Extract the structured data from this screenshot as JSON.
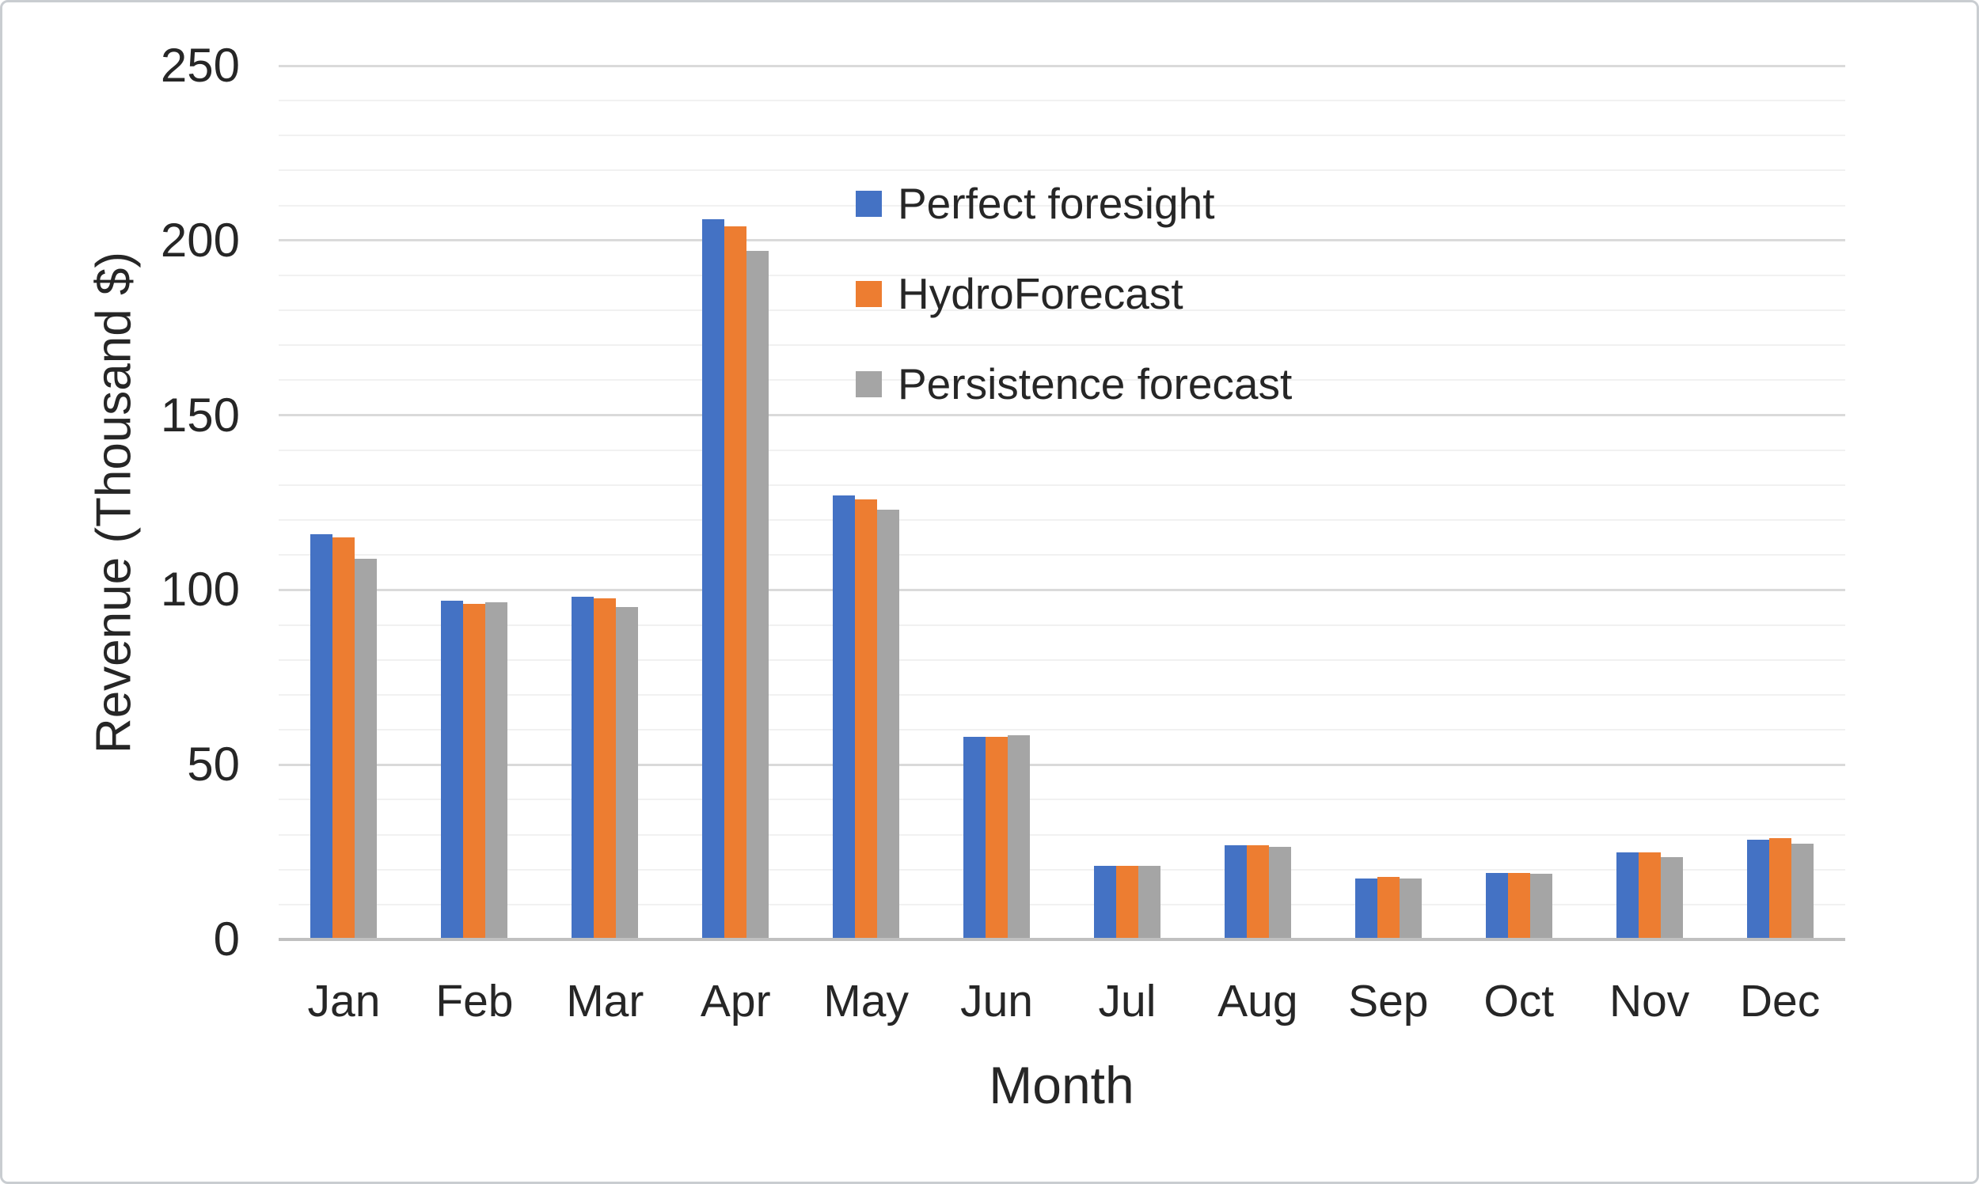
{
  "figure": {
    "background": "#ffffff",
    "border_color": "#c9cdd1"
  },
  "chart_data": {
    "type": "bar",
    "title": "",
    "xlabel": "Month",
    "ylabel": "Revenue (Thousand $)",
    "categories": [
      "Jan",
      "Feb",
      "Mar",
      "Apr",
      "May",
      "Jun",
      "Jul",
      "Aug",
      "Sep",
      "Oct",
      "Nov",
      "Dec"
    ],
    "series": [
      {
        "name": "Perfect foresight",
        "color": "#4472C4",
        "values": [
          116,
          97,
          98,
          206,
          127,
          58,
          21,
          27,
          17.5,
          19,
          25,
          28.5
        ]
      },
      {
        "name": "HydroForecast",
        "color": "#ED7D31",
        "values": [
          115,
          96,
          97.5,
          204,
          126,
          58,
          21,
          27,
          18,
          19,
          25,
          29
        ]
      },
      {
        "name": "Persistence forecast",
        "color": "#A5A5A5",
        "values": [
          109,
          96.5,
          95,
          197,
          123,
          58.5,
          21,
          26.5,
          17.5,
          18.8,
          23.5,
          27.5
        ]
      }
    ],
    "ylim": [
      0,
      250
    ],
    "y_tick_step": 50,
    "y_minor_step": 10,
    "y_tick_labels": [
      "0",
      "50",
      "100",
      "150",
      "200",
      "250"
    ],
    "grid": true,
    "legend_position": "inside-top-center",
    "axis_text_color": "#262626",
    "major_grid_color": "#dadada",
    "minor_grid_color": "#f1f1f1",
    "axis_line_color": "#c0c0c0"
  }
}
